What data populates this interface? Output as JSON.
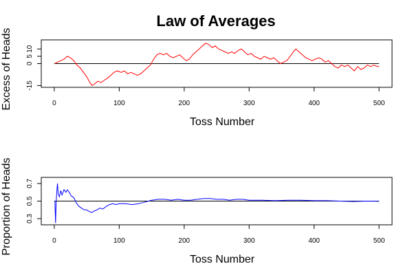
{
  "colors": {
    "background": "#ffffff",
    "axes": "#000000",
    "reference_line": "#000000",
    "excess_series": "#ff0000",
    "proportion_series": "#0000ff"
  },
  "title": "Law of Averages",
  "chart_data": [
    {
      "type": "line",
      "title": "Law of Averages",
      "xlabel": "Toss Number",
      "ylabel": "Excess of Heads",
      "xlim": [
        0,
        500
      ],
      "ylim": [
        -15,
        15
      ],
      "xticks": [
        "0",
        "100",
        "200",
        "300",
        "400",
        "500"
      ],
      "yticks": [
        "-15",
        "0",
        "5",
        "10"
      ],
      "reference_line": 0,
      "series": [
        {
          "color": "#ff0000",
          "points": [
            [
              1,
              0
            ],
            [
              5,
              1
            ],
            [
              10,
              2
            ],
            [
              15,
              3
            ],
            [
              20,
              5
            ],
            [
              25,
              4
            ],
            [
              30,
              2
            ],
            [
              35,
              -1
            ],
            [
              40,
              -3
            ],
            [
              45,
              -6
            ],
            [
              50,
              -9
            ],
            [
              55,
              -13
            ],
            [
              58,
              -15
            ],
            [
              62,
              -14
            ],
            [
              67,
              -12
            ],
            [
              72,
              -13
            ],
            [
              78,
              -11
            ],
            [
              82,
              -10
            ],
            [
              87,
              -8
            ],
            [
              92,
              -6
            ],
            [
              97,
              -5
            ],
            [
              103,
              -6
            ],
            [
              108,
              -5
            ],
            [
              113,
              -7
            ],
            [
              118,
              -6
            ],
            [
              123,
              -7
            ],
            [
              128,
              -8
            ],
            [
              133,
              -7
            ],
            [
              138,
              -5
            ],
            [
              143,
              -3
            ],
            [
              148,
              -1
            ],
            [
              153,
              3
            ],
            [
              158,
              6
            ],
            [
              163,
              7
            ],
            [
              168,
              6
            ],
            [
              173,
              7
            ],
            [
              178,
              5
            ],
            [
              183,
              4
            ],
            [
              188,
              5
            ],
            [
              193,
              6
            ],
            [
              198,
              4
            ],
            [
              203,
              2
            ],
            [
              208,
              3
            ],
            [
              213,
              6
            ],
            [
              218,
              8
            ],
            [
              223,
              10
            ],
            [
              228,
              12
            ],
            [
              233,
              14
            ],
            [
              238,
              13
            ],
            [
              243,
              11
            ],
            [
              248,
              12
            ],
            [
              253,
              10
            ],
            [
              258,
              9
            ],
            [
              263,
              8
            ],
            [
              268,
              7
            ],
            [
              273,
              8
            ],
            [
              278,
              7
            ],
            [
              283,
              9
            ],
            [
              288,
              10
            ],
            [
              293,
              8
            ],
            [
              298,
              6
            ],
            [
              303,
              7
            ],
            [
              308,
              5
            ],
            [
              313,
              4
            ],
            [
              318,
              3
            ],
            [
              323,
              5
            ],
            [
              328,
              4
            ],
            [
              333,
              3
            ],
            [
              338,
              4
            ],
            [
              343,
              2
            ],
            [
              348,
              0
            ],
            [
              353,
              1
            ],
            [
              358,
              2
            ],
            [
              363,
              5
            ],
            [
              368,
              8
            ],
            [
              372,
              10
            ],
            [
              377,
              8
            ],
            [
              382,
              6
            ],
            [
              387,
              4
            ],
            [
              392,
              3
            ],
            [
              397,
              2
            ],
            [
              402,
              3
            ],
            [
              407,
              4
            ],
            [
              412,
              3
            ],
            [
              417,
              1
            ],
            [
              422,
              2
            ],
            [
              427,
              0
            ],
            [
              432,
              -2
            ],
            [
              437,
              -3
            ],
            [
              442,
              -1
            ],
            [
              447,
              -2
            ],
            [
              452,
              -1
            ],
            [
              457,
              -3
            ],
            [
              462,
              -5
            ],
            [
              467,
              -2
            ],
            [
              472,
              -4
            ],
            [
              477,
              -3
            ],
            [
              482,
              -1
            ],
            [
              487,
              -2
            ],
            [
              492,
              -1
            ],
            [
              497,
              -2
            ],
            [
              500,
              -2
            ]
          ]
        }
      ]
    },
    {
      "type": "line",
      "title": "",
      "xlabel": "Toss Number",
      "ylabel": "Proportion of Heads",
      "xlim": [
        0,
        500
      ],
      "ylim": [
        0.25,
        0.75
      ],
      "xticks": [
        "0",
        "100",
        "200",
        "300",
        "400",
        "500"
      ],
      "yticks": [
        "0.3",
        "0.5",
        "0.7"
      ],
      "reference_line": 0.5,
      "series": [
        {
          "color": "#0000ff",
          "points": [
            [
              1,
              0.5
            ],
            [
              2,
              0.25
            ],
            [
              3,
              0.5
            ],
            [
              4,
              0.62
            ],
            [
              5,
              0.7
            ],
            [
              6,
              0.58
            ],
            [
              8,
              0.55
            ],
            [
              10,
              0.62
            ],
            [
              12,
              0.57
            ],
            [
              15,
              0.63
            ],
            [
              18,
              0.6
            ],
            [
              20,
              0.63
            ],
            [
              23,
              0.6
            ],
            [
              26,
              0.56
            ],
            [
              30,
              0.54
            ],
            [
              34,
              0.48
            ],
            [
              38,
              0.44
            ],
            [
              42,
              0.42
            ],
            [
              46,
              0.4
            ],
            [
              50,
              0.4
            ],
            [
              54,
              0.38
            ],
            [
              58,
              0.37
            ],
            [
              62,
              0.39
            ],
            [
              66,
              0.4
            ],
            [
              70,
              0.42
            ],
            [
              75,
              0.41
            ],
            [
              80,
              0.44
            ],
            [
              85,
              0.46
            ],
            [
              90,
              0.47
            ],
            [
              95,
              0.46
            ],
            [
              100,
              0.47
            ],
            [
              110,
              0.47
            ],
            [
              120,
              0.46
            ],
            [
              130,
              0.47
            ],
            [
              140,
              0.49
            ],
            [
              150,
              0.51
            ],
            [
              160,
              0.52
            ],
            [
              170,
              0.52
            ],
            [
              180,
              0.51
            ],
            [
              190,
              0.52
            ],
            [
              200,
              0.51
            ],
            [
              210,
              0.51
            ],
            [
              220,
              0.52
            ],
            [
              230,
              0.53
            ],
            [
              240,
              0.53
            ],
            [
              250,
              0.52
            ],
            [
              260,
              0.52
            ],
            [
              270,
              0.51
            ],
            [
              280,
              0.52
            ],
            [
              290,
              0.52
            ],
            [
              300,
              0.51
            ],
            [
              320,
              0.51
            ],
            [
              340,
              0.505
            ],
            [
              360,
              0.51
            ],
            [
              380,
              0.51
            ],
            [
              400,
              0.505
            ],
            [
              420,
              0.505
            ],
            [
              440,
              0.5
            ],
            [
              460,
              0.495
            ],
            [
              480,
              0.5
            ],
            [
              500,
              0.498
            ]
          ]
        }
      ]
    }
  ]
}
